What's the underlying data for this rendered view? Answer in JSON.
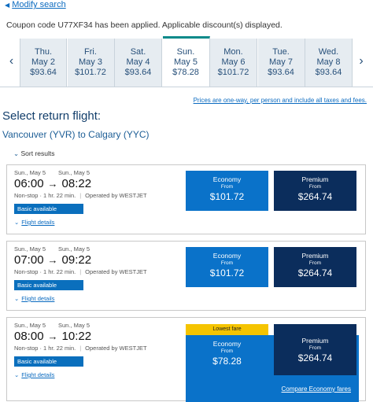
{
  "nav": {
    "back_link": "Modify search"
  },
  "coupon_message": "Coupon code U77XF34 has been applied. Applicable discount(s) displayed.",
  "dates": [
    {
      "day": "Thu.",
      "date": "May 2",
      "price": "$93.64"
    },
    {
      "day": "Fri.",
      "date": "May 3",
      "price": "$101.72"
    },
    {
      "day": "Sat.",
      "date": "May 4",
      "price": "$93.64"
    },
    {
      "day": "Sun.",
      "date": "May 5",
      "price": "$78.28"
    },
    {
      "day": "Mon.",
      "date": "May 6",
      "price": "$101.72"
    },
    {
      "day": "Tue.",
      "date": "May 7",
      "price": "$93.64"
    },
    {
      "day": "Wed.",
      "date": "May 8",
      "price": "$93.64"
    }
  ],
  "price_note": "Prices are one-way, per person and include all taxes and fees.",
  "section_title": "Select return flight:",
  "route": {
    "origin": "Vancouver (YVR)",
    "destination": "to Calgary (YYC)"
  },
  "sort": "Sort results",
  "flights": [
    {
      "depart_date": "Sun., May 5",
      "arrive_date": "Sun., May 5",
      "depart": "06:00",
      "arrive": "08:22",
      "stops": "Non-stop",
      "duration": "1 hr. 22 min.",
      "operator": "Operated by WESTJET",
      "badge": "Basic available",
      "details": "Flight details",
      "fares": [
        {
          "cabin": "Economy",
          "from": "From",
          "price": "$101.72"
        },
        {
          "cabin": "Premium",
          "from": "From",
          "price": "$264.74"
        }
      ]
    },
    {
      "depart_date": "Sun., May 5",
      "arrive_date": "Sun., May 5",
      "depart": "07:00",
      "arrive": "09:22",
      "stops": "Non-stop",
      "duration": "1 hr. 22 min.",
      "operator": "Operated by WESTJET",
      "badge": "Basic available",
      "details": "Flight details",
      "fares": [
        {
          "cabin": "Economy",
          "from": "From",
          "price": "$101.72"
        },
        {
          "cabin": "Premium",
          "from": "From",
          "price": "$264.74"
        }
      ]
    },
    {
      "depart_date": "Sun., May 5",
      "arrive_date": "Sun., May 5",
      "depart": "08:00",
      "arrive": "10:22",
      "stops": "Non-stop",
      "duration": "1 hr. 22 min.",
      "operator": "Operated by WESTJET",
      "badge": "Basic available",
      "details": "Flight details",
      "tag": "Lowest fare",
      "compare": "Compare Economy fares",
      "fares": [
        {
          "cabin": "Economy",
          "from": "From",
          "price": "$78.28"
        },
        {
          "cabin": "Premium",
          "from": "From",
          "price": "$264.74"
        }
      ]
    }
  ]
}
